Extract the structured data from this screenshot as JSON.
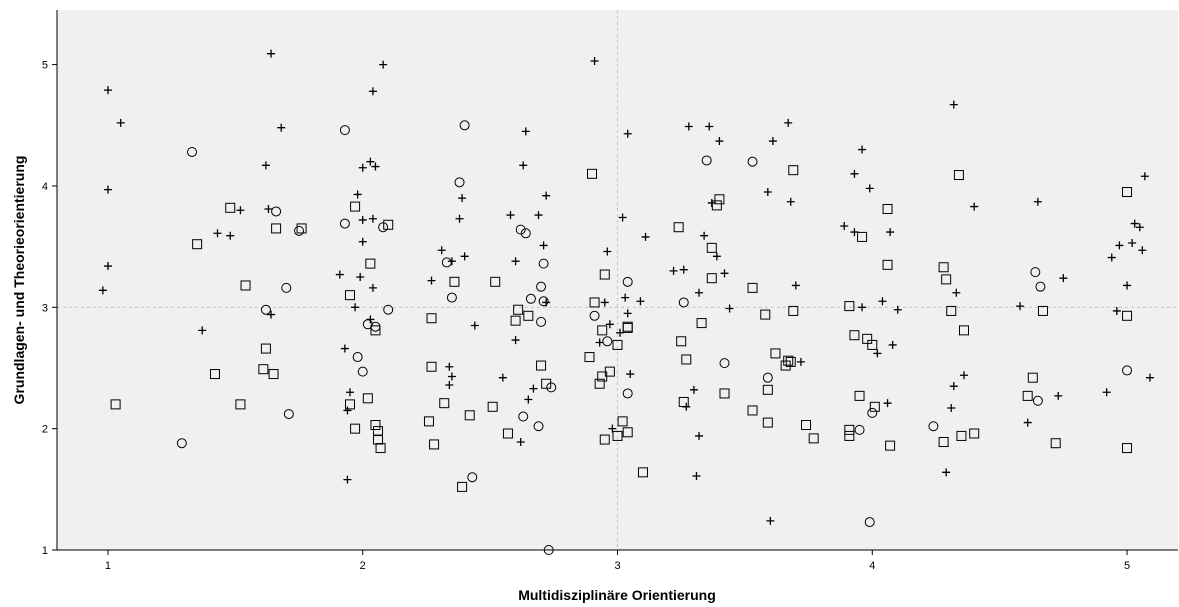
{
  "chart_data": {
    "type": "scatter",
    "title": "",
    "xlabel": "Multidisziplinäre Orientierung",
    "ylabel": "Grundlagen- und Theorieorientierung",
    "xlim": [
      0.8,
      5.2
    ],
    "ylim": [
      1,
      5.45
    ],
    "xticks": [
      "1",
      "2",
      "3",
      "4",
      "5"
    ],
    "yticks": [
      "1",
      "2",
      "3",
      "4",
      "5"
    ],
    "reference_lines": {
      "x": 3,
      "y": 3
    },
    "grid": false,
    "legend": "none",
    "colors": {
      "plot_background": "#f0f0f0",
      "marker": "#000000",
      "reference_line": "#c8c8c8"
    },
    "series": [
      {
        "marker": "plus",
        "points": [
          [
            0.98,
            3.14
          ],
          [
            1.0,
            3.34
          ],
          [
            1.0,
            3.97
          ],
          [
            1.0,
            4.79
          ],
          [
            1.05,
            4.52
          ],
          [
            1.37,
            2.81
          ],
          [
            1.43,
            3.61
          ],
          [
            1.48,
            3.59
          ],
          [
            1.52,
            3.8
          ],
          [
            1.62,
            4.17
          ],
          [
            1.64,
            5.09
          ],
          [
            1.63,
            3.81
          ],
          [
            1.64,
            2.94
          ],
          [
            1.68,
            4.48
          ],
          [
            1.91,
            3.27
          ],
          [
            1.93,
            2.66
          ],
          [
            1.94,
            1.58
          ],
          [
            1.94,
            2.15
          ],
          [
            1.95,
            2.3
          ],
          [
            1.97,
            3.0
          ],
          [
            1.98,
            3.93
          ],
          [
            1.99,
            3.25
          ],
          [
            2.0,
            3.54
          ],
          [
            2.0,
            3.72
          ],
          [
            2.0,
            4.15
          ],
          [
            2.03,
            4.2
          ],
          [
            2.04,
            4.78
          ],
          [
            2.05,
            4.16
          ],
          [
            2.03,
            2.9
          ],
          [
            2.04,
            3.16
          ],
          [
            2.04,
            3.73
          ],
          [
            2.08,
            5.0
          ],
          [
            2.27,
            3.22
          ],
          [
            2.31,
            3.47
          ],
          [
            2.34,
            2.36
          ],
          [
            2.34,
            2.51
          ],
          [
            2.35,
            2.43
          ],
          [
            2.35,
            3.38
          ],
          [
            2.38,
            3.73
          ],
          [
            2.39,
            3.9
          ],
          [
            2.4,
            3.42
          ],
          [
            2.44,
            2.85
          ],
          [
            2.55,
            2.42
          ],
          [
            2.58,
            3.76
          ],
          [
            2.6,
            2.73
          ],
          [
            2.6,
            3.38
          ],
          [
            2.62,
            1.89
          ],
          [
            2.63,
            4.17
          ],
          [
            2.64,
            4.45
          ],
          [
            2.65,
            2.24
          ],
          [
            2.67,
            2.33
          ],
          [
            2.69,
            3.76
          ],
          [
            2.71,
            3.51
          ],
          [
            2.72,
            3.04
          ],
          [
            2.72,
            3.92
          ],
          [
            2.91,
            5.03
          ],
          [
            2.93,
            2.71
          ],
          [
            2.95,
            3.04
          ],
          [
            2.96,
            3.46
          ],
          [
            2.97,
            2.86
          ],
          [
            2.98,
            2.0
          ],
          [
            3.01,
            2.79
          ],
          [
            3.02,
            3.74
          ],
          [
            3.03,
            3.08
          ],
          [
            3.04,
            2.95
          ],
          [
            3.05,
            2.45
          ],
          [
            3.04,
            4.43
          ],
          [
            3.09,
            3.05
          ],
          [
            3.11,
            3.58
          ],
          [
            3.22,
            3.3
          ],
          [
            3.26,
            3.31
          ],
          [
            3.27,
            2.18
          ],
          [
            3.28,
            4.49
          ],
          [
            3.3,
            2.32
          ],
          [
            3.31,
            1.61
          ],
          [
            3.32,
            1.94
          ],
          [
            3.32,
            3.12
          ],
          [
            3.34,
            3.59
          ],
          [
            3.37,
            3.86
          ],
          [
            3.36,
            4.49
          ],
          [
            3.39,
            3.42
          ],
          [
            3.4,
            4.37
          ],
          [
            3.42,
            3.28
          ],
          [
            3.44,
            2.99
          ],
          [
            3.59,
            3.95
          ],
          [
            3.6,
            1.24
          ],
          [
            3.61,
            4.37
          ],
          [
            3.67,
            4.52
          ],
          [
            3.68,
            3.87
          ],
          [
            3.7,
            3.18
          ],
          [
            3.72,
            2.55
          ],
          [
            3.89,
            3.67
          ],
          [
            3.93,
            3.62
          ],
          [
            3.93,
            4.1
          ],
          [
            3.96,
            3.0
          ],
          [
            3.96,
            4.3
          ],
          [
            3.99,
            3.98
          ],
          [
            4.02,
            2.62
          ],
          [
            4.04,
            3.05
          ],
          [
            4.06,
            2.21
          ],
          [
            4.07,
            3.62
          ],
          [
            4.08,
            2.69
          ],
          [
            4.1,
            2.98
          ],
          [
            4.29,
            1.64
          ],
          [
            4.31,
            2.17
          ],
          [
            4.32,
            2.35
          ],
          [
            4.32,
            4.67
          ],
          [
            4.33,
            3.12
          ],
          [
            4.36,
            2.44
          ],
          [
            4.4,
            3.83
          ],
          [
            4.58,
            3.01
          ],
          [
            4.61,
            2.05
          ],
          [
            4.65,
            3.87
          ],
          [
            4.73,
            2.27
          ],
          [
            4.75,
            3.24
          ],
          [
            4.92,
            2.3
          ],
          [
            4.94,
            3.41
          ],
          [
            4.96,
            2.97
          ],
          [
            4.97,
            3.51
          ],
          [
            5.0,
            3.18
          ],
          [
            5.02,
            3.53
          ],
          [
            5.03,
            3.69
          ],
          [
            5.05,
            3.66
          ],
          [
            5.06,
            3.47
          ],
          [
            5.07,
            4.08
          ],
          [
            5.09,
            2.42
          ]
        ]
      },
      {
        "marker": "circle",
        "points": [
          [
            1.29,
            1.88
          ],
          [
            1.33,
            4.28
          ],
          [
            1.62,
            2.98
          ],
          [
            1.66,
            3.79
          ],
          [
            1.7,
            3.16
          ],
          [
            1.71,
            2.12
          ],
          [
            1.75,
            3.63
          ],
          [
            1.93,
            4.46
          ],
          [
            1.93,
            3.69
          ],
          [
            1.98,
            2.59
          ],
          [
            2.0,
            2.47
          ],
          [
            2.02,
            2.86
          ],
          [
            2.05,
            2.84
          ],
          [
            2.08,
            3.66
          ],
          [
            2.1,
            2.98
          ],
          [
            2.33,
            3.37
          ],
          [
            2.35,
            3.08
          ],
          [
            2.38,
            4.03
          ],
          [
            2.4,
            4.5
          ],
          [
            2.43,
            1.6
          ],
          [
            2.62,
            3.64
          ],
          [
            2.63,
            2.1
          ],
          [
            2.64,
            3.61
          ],
          [
            2.66,
            3.07
          ],
          [
            2.69,
            2.02
          ],
          [
            2.7,
            2.88
          ],
          [
            2.7,
            3.17
          ],
          [
            2.71,
            3.36
          ],
          [
            2.71,
            3.05
          ],
          [
            2.73,
            1.0
          ],
          [
            2.74,
            2.34
          ],
          [
            2.91,
            2.93
          ],
          [
            2.96,
            2.72
          ],
          [
            3.04,
            2.29
          ],
          [
            3.04,
            3.21
          ],
          [
            3.26,
            3.04
          ],
          [
            3.35,
            4.21
          ],
          [
            3.42,
            2.54
          ],
          [
            3.53,
            4.2
          ],
          [
            3.59,
            2.42
          ],
          [
            3.95,
            1.99
          ],
          [
            3.99,
            1.23
          ],
          [
            4.0,
            2.13
          ],
          [
            4.24,
            2.02
          ],
          [
            4.64,
            3.29
          ],
          [
            4.65,
            2.23
          ],
          [
            4.66,
            3.17
          ],
          [
            5.0,
            2.48
          ]
        ]
      },
      {
        "marker": "square",
        "points": [
          [
            1.03,
            2.2
          ],
          [
            1.35,
            3.52
          ],
          [
            1.42,
            2.45
          ],
          [
            1.48,
            3.82
          ],
          [
            1.52,
            2.2
          ],
          [
            1.54,
            3.18
          ],
          [
            1.61,
            2.49
          ],
          [
            1.62,
            2.66
          ],
          [
            1.65,
            2.45
          ],
          [
            1.66,
            3.65
          ],
          [
            1.76,
            3.65
          ],
          [
            1.95,
            3.1
          ],
          [
            1.95,
            2.2
          ],
          [
            1.97,
            2.0
          ],
          [
            1.97,
            3.83
          ],
          [
            2.02,
            2.25
          ],
          [
            2.03,
            3.36
          ],
          [
            2.05,
            2.81
          ],
          [
            2.05,
            2.03
          ],
          [
            2.06,
            1.91
          ],
          [
            2.06,
            1.98
          ],
          [
            2.07,
            1.84
          ],
          [
            2.1,
            3.68
          ],
          [
            2.26,
            2.06
          ],
          [
            2.27,
            2.51
          ],
          [
            2.27,
            2.91
          ],
          [
            2.28,
            1.87
          ],
          [
            2.32,
            2.21
          ],
          [
            2.36,
            3.21
          ],
          [
            2.39,
            1.52
          ],
          [
            2.42,
            2.11
          ],
          [
            2.51,
            2.18
          ],
          [
            2.52,
            3.21
          ],
          [
            2.57,
            1.96
          ],
          [
            2.6,
            2.89
          ],
          [
            2.61,
            2.98
          ],
          [
            2.65,
            2.93
          ],
          [
            2.7,
            2.52
          ],
          [
            2.72,
            2.37
          ],
          [
            2.89,
            2.59
          ],
          [
            2.9,
            4.1
          ],
          [
            2.91,
            3.04
          ],
          [
            2.93,
            2.37
          ],
          [
            2.94,
            2.81
          ],
          [
            2.94,
            2.43
          ],
          [
            2.95,
            3.27
          ],
          [
            2.95,
            1.91
          ],
          [
            2.97,
            2.47
          ],
          [
            3.02,
            2.06
          ],
          [
            3.0,
            2.69
          ],
          [
            3.0,
            1.94
          ],
          [
            3.04,
            2.84
          ],
          [
            3.04,
            1.97
          ],
          [
            3.04,
            2.83
          ],
          [
            3.1,
            1.64
          ],
          [
            3.24,
            3.66
          ],
          [
            3.25,
            2.72
          ],
          [
            3.26,
            2.22
          ],
          [
            3.27,
            2.57
          ],
          [
            3.33,
            2.87
          ],
          [
            3.37,
            3.24
          ],
          [
            3.37,
            3.49
          ],
          [
            3.39,
            3.84
          ],
          [
            3.4,
            3.89
          ],
          [
            3.42,
            2.29
          ],
          [
            3.53,
            2.15
          ],
          [
            3.53,
            3.16
          ],
          [
            3.58,
            2.94
          ],
          [
            3.59,
            2.05
          ],
          [
            3.59,
            2.32
          ],
          [
            3.62,
            2.62
          ],
          [
            3.66,
            2.52
          ],
          [
            3.67,
            2.56
          ],
          [
            3.68,
            2.55
          ],
          [
            3.69,
            2.97
          ],
          [
            3.69,
            4.13
          ],
          [
            3.74,
            2.03
          ],
          [
            3.77,
            1.92
          ],
          [
            3.91,
            3.01
          ],
          [
            3.91,
            1.99
          ],
          [
            3.91,
            1.94
          ],
          [
            3.93,
            2.77
          ],
          [
            3.95,
            2.27
          ],
          [
            3.96,
            3.58
          ],
          [
            3.98,
            2.74
          ],
          [
            4.0,
            2.69
          ],
          [
            4.01,
            2.18
          ],
          [
            4.06,
            3.81
          ],
          [
            4.06,
            3.35
          ],
          [
            4.07,
            1.86
          ],
          [
            4.28,
            3.33
          ],
          [
            4.28,
            1.89
          ],
          [
            4.29,
            3.23
          ],
          [
            4.31,
            2.97
          ],
          [
            4.34,
            4.09
          ],
          [
            4.35,
            1.94
          ],
          [
            4.36,
            2.81
          ],
          [
            4.4,
            1.96
          ],
          [
            4.61,
            2.27
          ],
          [
            4.63,
            2.42
          ],
          [
            4.67,
            2.97
          ],
          [
            4.72,
            1.88
          ],
          [
            5.0,
            3.95
          ],
          [
            5.0,
            2.93
          ],
          [
            5.0,
            1.84
          ]
        ]
      }
    ]
  }
}
